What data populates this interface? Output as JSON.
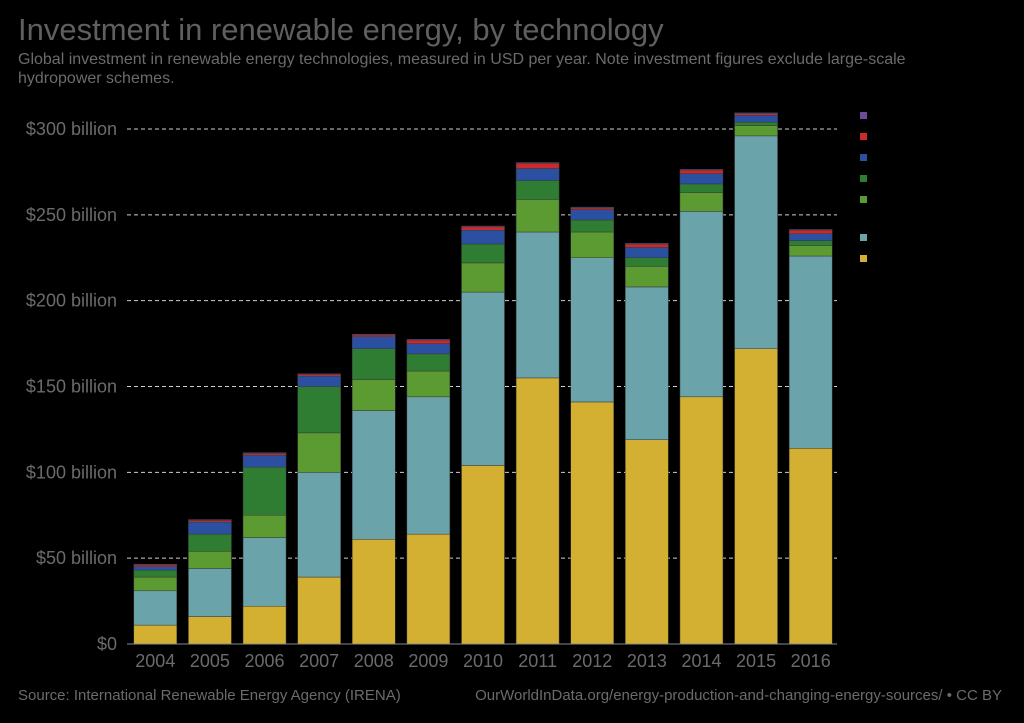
{
  "title": "Investment in renewable energy, by technology",
  "subtitle": "Global investment in renewable energy technologies, measured in USD per year. Note investment figures exclude large-scale hydropower schemes.",
  "source": "Source: International Renewable Energy Agency (IRENA)",
  "credit": "OurWorldInData.org/energy-production-and-changing-energy-sources/ • CC BY",
  "chart_data": {
    "type": "bar",
    "stacked": true,
    "categories": [
      "2004",
      "2005",
      "2006",
      "2007",
      "2008",
      "2009",
      "2010",
      "2011",
      "2012",
      "2013",
      "2014",
      "2015",
      "2016"
    ],
    "ylim": [
      0,
      300
    ],
    "yticks": [
      {
        "value": 0,
        "label": "$0"
      },
      {
        "value": 50,
        "label": "$50 billion"
      },
      {
        "value": 100,
        "label": "$100 billion"
      },
      {
        "value": 150,
        "label": "$150 billion"
      },
      {
        "value": 200,
        "label": "$200 billion"
      },
      {
        "value": 250,
        "label": "$250 billion"
      },
      {
        "value": 300,
        "label": "$300 billion"
      }
    ],
    "grid": true,
    "legend_position": "right",
    "series": [
      {
        "color": "#d4b032",
        "values": [
          11,
          16,
          22,
          39,
          61,
          64,
          104,
          155,
          141,
          119,
          144,
          172,
          114
        ]
      },
      {
        "color": "#6aa3a9",
        "values": [
          20,
          28,
          40,
          61,
          75,
          80,
          101,
          85,
          84,
          89,
          108,
          124,
          112
        ]
      },
      {
        "color": "#5c9a32",
        "values": [
          8,
          10,
          13,
          23,
          18,
          15,
          17,
          19,
          15,
          12,
          11,
          6,
          6
        ]
      },
      {
        "color": "#2e7d32",
        "values": [
          4,
          10,
          28,
          27,
          18,
          10,
          11,
          11,
          7,
          5,
          5,
          2,
          3
        ]
      },
      {
        "color": "#2b4fa1",
        "values": [
          2,
          7,
          7,
          6,
          7,
          6,
          8,
          7,
          6,
          6,
          6,
          4,
          4
        ]
      },
      {
        "color": "#cc2a2a",
        "values": [
          1,
          1,
          1,
          1,
          1,
          2,
          2,
          3,
          1,
          2,
          2,
          1,
          2
        ]
      },
      {
        "color": "#6c4a9a",
        "values": [
          0.5,
          0.5,
          0.5,
          0.5,
          0.5,
          0.5,
          0.5,
          0.5,
          0.5,
          0.5,
          0.5,
          0.5,
          0.5
        ]
      }
    ],
    "legend_colors": [
      "#6c4a9a",
      "#cc2a2a",
      "#2b4fa1",
      "#2e7d32",
      "#5c9a32",
      "#6aa3a9",
      "#d4b032"
    ]
  }
}
